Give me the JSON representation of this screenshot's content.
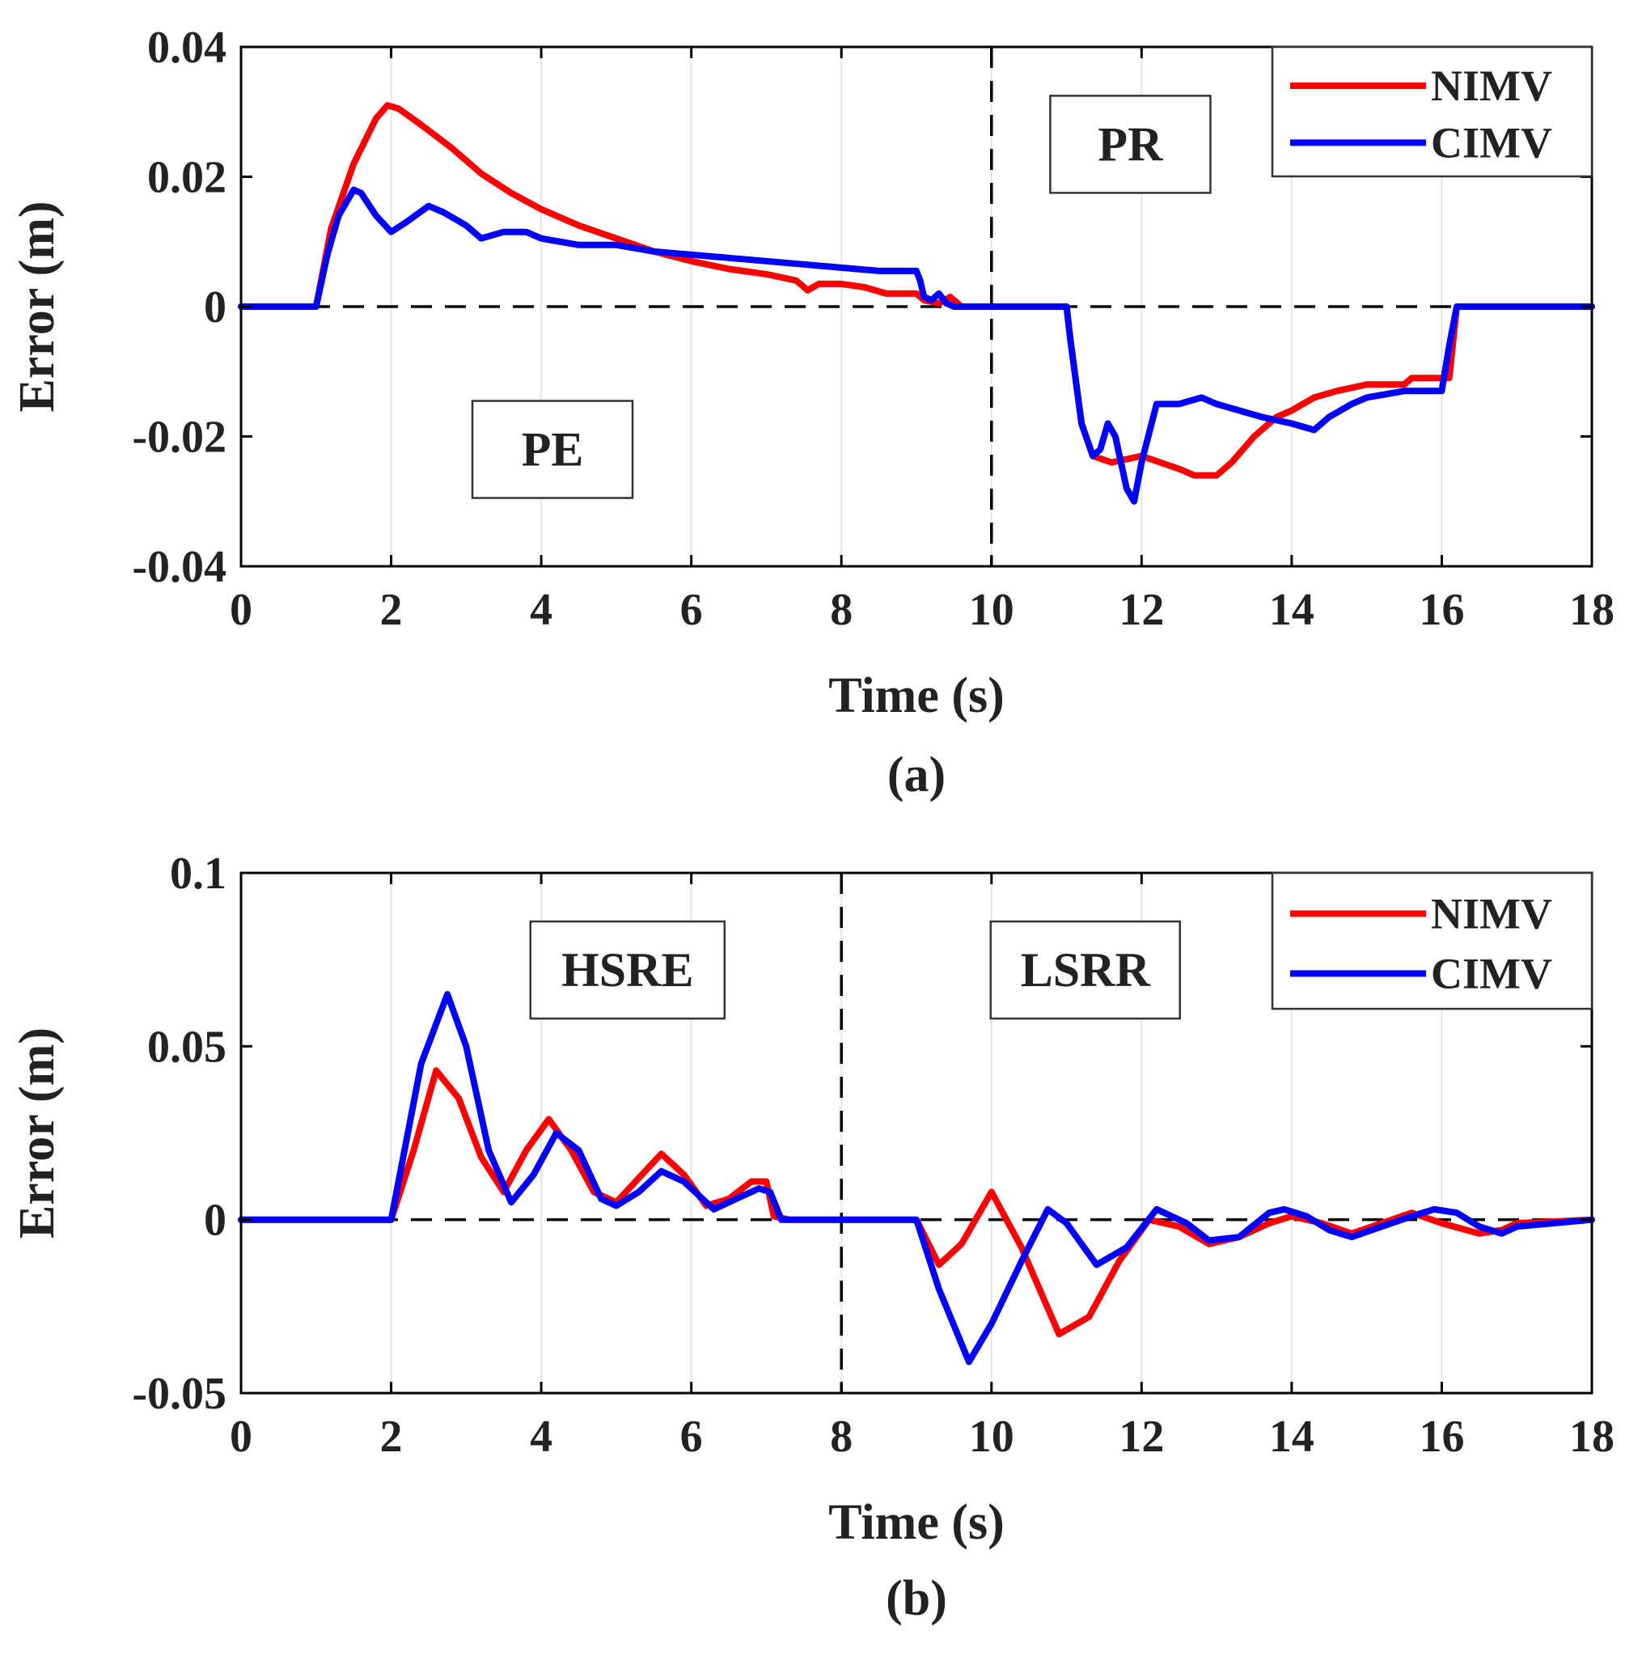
{
  "chart_data": [
    {
      "id": "a",
      "type": "line",
      "caption": "(a)",
      "xlabel": "Time (s)",
      "ylabel": "Error (m)",
      "xlim": [
        0,
        18
      ],
      "ylim": [
        -0.04,
        0.04
      ],
      "xticks": [
        0,
        2,
        4,
        6,
        8,
        10,
        12,
        14,
        16,
        18
      ],
      "yticks": [
        -0.04,
        -0.02,
        0,
        0.02,
        0.04
      ],
      "xtick_labels": [
        "0",
        "2",
        "4",
        "6",
        "8",
        "10",
        "12",
        "14",
        "16",
        "18"
      ],
      "ytick_labels": [
        "-0.04",
        "-0.02",
        "0",
        "0.02",
        "0.04"
      ],
      "vline_x": 10,
      "zero_line": true,
      "legend": {
        "placement": "top-right",
        "entries": [
          "NIMV",
          "CIMV"
        ]
      },
      "annotations": [
        {
          "text": "PE",
          "x": 4.15,
          "y": -0.022
        },
        {
          "text": "PR",
          "x": 11.85,
          "y": 0.025
        }
      ],
      "series": [
        {
          "name": "NIMV",
          "color": "#ff0000",
          "x": [
            0,
            1.0,
            1.2,
            1.5,
            1.8,
            1.95,
            2.1,
            2.4,
            2.8,
            3.2,
            3.6,
            4.0,
            4.5,
            5.0,
            5.5,
            6.0,
            6.5,
            7.0,
            7.4,
            7.55,
            7.7,
            8.0,
            8.3,
            8.6,
            9.0,
            9.1,
            9.3,
            9.45,
            9.6,
            10,
            11.0,
            11.05,
            11.2,
            11.35,
            11.6,
            12.0,
            12.5,
            12.7,
            13.0,
            13.2,
            13.5,
            13.8,
            14.0,
            14.3,
            14.6,
            15.0,
            15.5,
            15.6,
            16.0,
            16.1,
            16.2,
            18
          ],
          "y": [
            0,
            0,
            0.012,
            0.022,
            0.029,
            0.031,
            0.0305,
            0.028,
            0.0245,
            0.0205,
            0.0175,
            0.015,
            0.0125,
            0.0105,
            0.0085,
            0.007,
            0.0058,
            0.005,
            0.004,
            0.0025,
            0.0035,
            0.0035,
            0.003,
            0.002,
            0.002,
            0.001,
            0.0005,
            0.0015,
            0,
            0,
            0,
            -0.005,
            -0.018,
            -0.023,
            -0.024,
            -0.023,
            -0.025,
            -0.026,
            -0.026,
            -0.024,
            -0.02,
            -0.017,
            -0.016,
            -0.014,
            -0.013,
            -0.012,
            -0.012,
            -0.011,
            -0.011,
            -0.011,
            0,
            0
          ]
        },
        {
          "name": "CIMV",
          "color": "#0000ff",
          "x": [
            0,
            1.0,
            1.15,
            1.3,
            1.5,
            1.6,
            1.8,
            2.0,
            2.2,
            2.5,
            2.7,
            3.0,
            3.2,
            3.5,
            3.8,
            4.0,
            4.5,
            5.0,
            5.5,
            6.0,
            6.5,
            7.0,
            7.5,
            8.0,
            8.5,
            9.0,
            9.05,
            9.1,
            9.2,
            9.3,
            9.4,
            9.5,
            10,
            11.0,
            11.05,
            11.2,
            11.35,
            11.45,
            11.55,
            11.65,
            11.8,
            11.9,
            12.0,
            12.2,
            12.5,
            12.8,
            13.0,
            13.3,
            13.6,
            14.0,
            14.3,
            14.5,
            14.8,
            15.0,
            15.5,
            16.0,
            16.1,
            16.2,
            18
          ],
          "y": [
            0,
            0,
            0.008,
            0.014,
            0.018,
            0.0175,
            0.014,
            0.0115,
            0.013,
            0.0155,
            0.0145,
            0.0125,
            0.0105,
            0.0115,
            0.0115,
            0.0105,
            0.0095,
            0.0095,
            0.0085,
            0.008,
            0.0075,
            0.007,
            0.0065,
            0.006,
            0.0055,
            0.0055,
            0.004,
            0.0015,
            0.001,
            0.002,
            0.0005,
            0,
            0,
            0,
            -0.005,
            -0.018,
            -0.023,
            -0.022,
            -0.018,
            -0.02,
            -0.028,
            -0.03,
            -0.024,
            -0.015,
            -0.015,
            -0.014,
            -0.015,
            -0.016,
            -0.017,
            -0.018,
            -0.019,
            -0.017,
            -0.015,
            -0.014,
            -0.013,
            -0.013,
            -0.006,
            0,
            0
          ]
        }
      ]
    },
    {
      "id": "b",
      "type": "line",
      "caption": "(b)",
      "xlabel": "Time (s)",
      "ylabel": "Error (m)",
      "xlim": [
        0,
        18
      ],
      "ylim": [
        -0.05,
        0.1
      ],
      "xticks": [
        0,
        2,
        4,
        6,
        8,
        10,
        12,
        14,
        16,
        18
      ],
      "yticks": [
        -0.05,
        0,
        0.05,
        0.1
      ],
      "xtick_labels": [
        "0",
        "2",
        "4",
        "6",
        "8",
        "10",
        "12",
        "14",
        "16",
        "18"
      ],
      "ytick_labels": [
        "-0.05",
        "0",
        "0.05",
        "0.1"
      ],
      "vline_x": 8,
      "zero_line": true,
      "legend": {
        "placement": "top-right",
        "entries": [
          "NIMV",
          "CIMV"
        ]
      },
      "annotations": [
        {
          "text": "HSRE",
          "x": 5.15,
          "y": 0.072
        },
        {
          "text": "LSRR",
          "x": 11.25,
          "y": 0.072
        }
      ],
      "series": [
        {
          "name": "NIMV",
          "color": "#ff0000",
          "x": [
            0,
            2.0,
            2.3,
            2.6,
            2.9,
            3.2,
            3.5,
            3.8,
            4.1,
            4.4,
            4.7,
            5.0,
            5.3,
            5.6,
            5.9,
            6.2,
            6.5,
            6.8,
            7.0,
            7.1,
            7.3,
            8.0,
            9.0,
            9.3,
            9.6,
            10.0,
            10.4,
            10.9,
            11.3,
            11.7,
            12.1,
            12.5,
            12.9,
            13.3,
            13.7,
            14.0,
            14.4,
            14.8,
            15.2,
            15.6,
            16.0,
            16.5,
            16.8,
            17.0,
            18
          ],
          "y": [
            0,
            0,
            0.02,
            0.043,
            0.035,
            0.018,
            0.008,
            0.02,
            0.029,
            0.02,
            0.008,
            0.005,
            0.012,
            0.019,
            0.013,
            0.004,
            0.006,
            0.011,
            0.011,
            0.001,
            0,
            0,
            0,
            -0.013,
            -0.007,
            0.008,
            -0.008,
            -0.033,
            -0.028,
            -0.012,
            0,
            -0.002,
            -0.007,
            -0.005,
            -0.001,
            0.001,
            -0.001,
            -0.004,
            -0.001,
            0.002,
            -0.001,
            -0.004,
            -0.003,
            -0.001,
            0
          ]
        },
        {
          "name": "CIMV",
          "color": "#0000ff",
          "x": [
            0,
            2.0,
            2.4,
            2.75,
            3.0,
            3.3,
            3.6,
            3.9,
            4.2,
            4.5,
            4.8,
            5.0,
            5.3,
            5.6,
            5.9,
            6.3,
            6.6,
            6.9,
            7.05,
            7.2,
            8.0,
            9.0,
            9.3,
            9.7,
            10.0,
            10.4,
            10.75,
            11.0,
            11.4,
            11.8,
            12.2,
            12.6,
            12.9,
            13.3,
            13.7,
            13.9,
            14.2,
            14.5,
            14.8,
            15.2,
            15.6,
            15.9,
            16.2,
            16.5,
            16.8,
            17.0,
            18
          ],
          "y": [
            0,
            0,
            0.045,
            0.065,
            0.05,
            0.02,
            0.005,
            0.013,
            0.025,
            0.02,
            0.006,
            0.004,
            0.008,
            0.014,
            0.011,
            0.003,
            0.006,
            0.009,
            0.008,
            0,
            0,
            0,
            -0.02,
            -0.041,
            -0.03,
            -0.012,
            0.003,
            -0.001,
            -0.013,
            -0.008,
            0.003,
            -0.001,
            -0.006,
            -0.005,
            0.002,
            0.003,
            0.001,
            -0.003,
            -0.005,
            -0.002,
            0.001,
            0.003,
            0.002,
            -0.002,
            -0.004,
            -0.002,
            0
          ]
        }
      ]
    }
  ]
}
